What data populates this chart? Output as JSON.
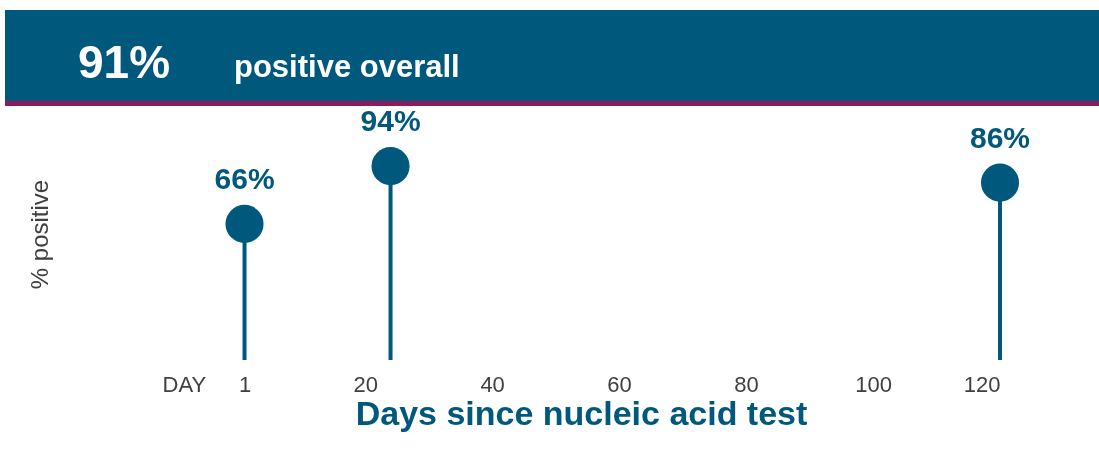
{
  "chart_data": {
    "type": "lollipop",
    "title": "91%",
    "subtitle": "positive overall",
    "xlabel": "Days since nucleic acid test",
    "ylabel": "% positive",
    "x": [
      1,
      24,
      120
    ],
    "values": [
      66,
      94,
      86
    ],
    "color": "#00587c",
    "value_labels": [
      "66%",
      "94%",
      "86%"
    ],
    "xlim": [
      -12,
      120
    ],
    "xticks": [
      {
        "value": -12,
        "label": "DAY"
      },
      1,
      20,
      40,
      60,
      80,
      100,
      120
    ],
    "tick_labels": "x",
    "grid": false
  }
}
